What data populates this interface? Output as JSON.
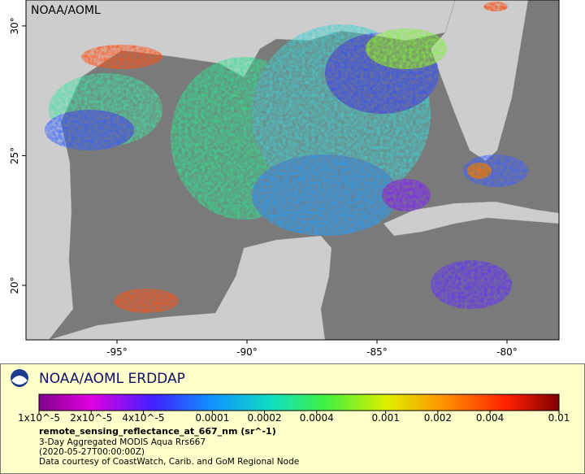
{
  "map": {
    "watermark": "NOAA/AOML",
    "lon_range": [
      -98.5,
      -78
    ],
    "lat_range": [
      17.9,
      31
    ],
    "lon_ticks": [
      {
        "value": -95,
        "label": "-95°"
      },
      {
        "value": -90,
        "label": "-90°"
      },
      {
        "value": -85,
        "label": "-85°"
      },
      {
        "value": -80,
        "label": "-80°"
      }
    ],
    "lat_ticks": [
      {
        "value": 20,
        "label": "20°"
      },
      {
        "value": 25,
        "label": "25°"
      },
      {
        "value": 30,
        "label": "30°"
      }
    ]
  },
  "legend": {
    "title": "NOAA/AOML ERDDAP",
    "colorbar": {
      "range": [
        1e-05,
        0.01
      ],
      "scale": "log",
      "ticks": [
        {
          "value": 1e-05,
          "label": "1x10^-5"
        },
        {
          "value": 2e-05,
          "label": "2x10^-5"
        },
        {
          "value": 4e-05,
          "label": "4x10^-5"
        },
        0.0001,
        0.0002,
        0.0004,
        0.001,
        0.002,
        0.004,
        0.01
      ]
    },
    "variable": "remote_sensing_reflectance_at_667_nm (sr^-1)",
    "lines": [
      "3-Day Aggregated MODIS Aqua Rrs667",
      "(2020-05-27T00:00:00Z)",
      "Data courtesy of CoastWatch, Carib. and GoM Regional Node"
    ]
  }
}
